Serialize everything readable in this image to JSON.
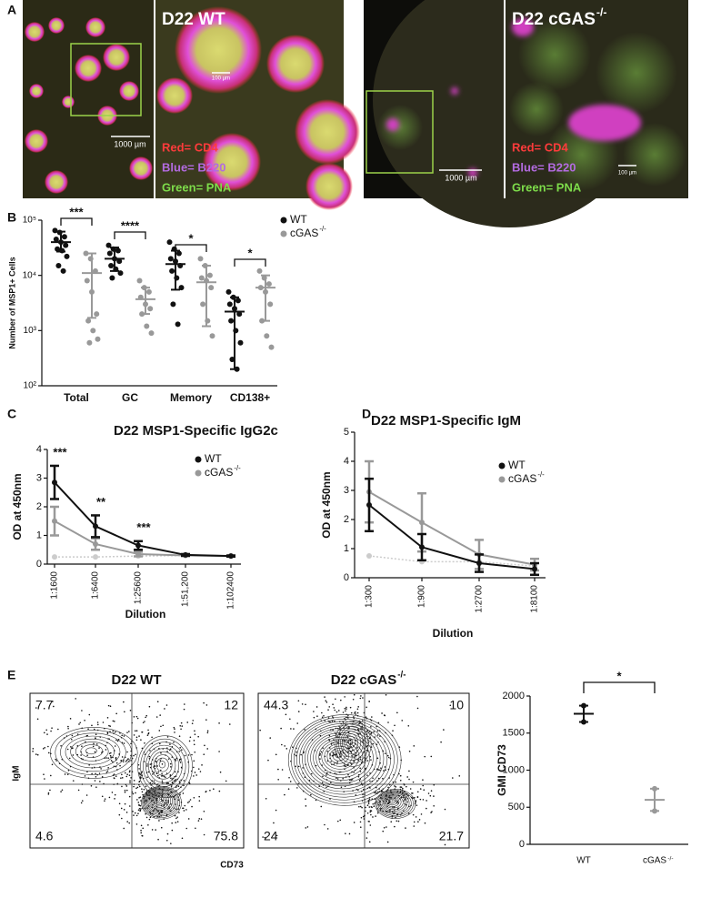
{
  "panel_labels": [
    "A",
    "B",
    "C",
    "D",
    "E"
  ],
  "microscopy": {
    "stain_colors": [
      "#ff3b3b",
      "#b36be0",
      "#7ddc4a"
    ],
    "images": [
      {
        "title": "D22 WT",
        "scale_bars": [
          "1000 µm",
          "100 µm"
        ],
        "stains": [
          "Red= CD4",
          "Blue= B220",
          "Green= PNA"
        ]
      },
      {
        "title": "D22 cGAS",
        "title_sup": "-/-",
        "scale_bars": [
          "1000 µm",
          "100 µm"
        ],
        "stains": [
          "Red= CD4",
          "Blue= B220",
          "Green= PNA"
        ]
      }
    ]
  },
  "chart_data": [
    {
      "type": "dot",
      "ylabel": "Number of MSP1+ Cells",
      "categories": [
        "Total",
        "GC",
        "Memory",
        "CD138+"
      ],
      "log_scale": true,
      "ylim": [
        100,
        100000
      ],
      "yticks": [
        {
          "value": 100,
          "label": "10²"
        },
        {
          "value": 1000,
          "label": "10³"
        },
        {
          "value": 10000,
          "label": "10⁴"
        },
        {
          "value": 100000,
          "label": "10⁵"
        }
      ],
      "legend": "top-right",
      "annotations": [
        "***",
        "****",
        "*",
        "*"
      ],
      "series": [
        {
          "name": "WT",
          "color": "#111111",
          "points": [
            [
              65000,
              60000,
              50000,
              45000,
              40000,
              35000,
              30000,
              28000,
              22000,
              15000,
              12000
            ],
            [
              35000,
              30000,
              28000,
              25000,
              20000,
              18000,
              15000,
              13000,
              11000,
              9000
            ],
            [
              40000,
              30000,
              25000,
              20000,
              18000,
              15000,
              12000,
              9000,
              6000,
              3000,
              1300
            ],
            [
              5000,
              4000,
              3500,
              3000,
              2500,
              2000,
              1500,
              1000,
              600,
              300,
              200
            ]
          ],
          "means": [
            40000,
            20000,
            16000,
            2200
          ],
          "upper": [
            62000,
            32000,
            28000,
            4000
          ],
          "lower": [
            27000,
            12000,
            5500,
            200
          ]
        },
        {
          "name": "cGAS",
          "name_sup": "-/-",
          "color": "#999999",
          "points": [
            [
              25000,
              20000,
              12000,
              8000,
              5000,
              2000,
              1500,
              1000,
              700,
              600
            ],
            [
              8000,
              6000,
              5000,
              4000,
              3000,
              2500,
              2000,
              1200,
              900
            ],
            [
              20000,
              15000,
              10000,
              9000,
              8000,
              6000,
              3000,
              1500,
              800
            ],
            [
              12000,
              9000,
              7000,
              6000,
              5000,
              3000,
              1500,
              800,
              500
            ]
          ],
          "means": [
            11000,
            3700,
            7500,
            6000
          ],
          "upper": [
            25000,
            6000,
            15000,
            10000
          ],
          "lower": [
            1700,
            2000,
            1200,
            1500
          ]
        }
      ]
    },
    {
      "type": "line",
      "title": "D22 MSP1-Specific IgG2c",
      "xlabel": "Dilution",
      "ylabel": "OD at 450nm",
      "categories": [
        "1:1600",
        "1:6400",
        "1:25600",
        "1:51,200",
        "1:102400"
      ],
      "ylim": [
        0,
        4
      ],
      "yticks": [
        0,
        1,
        2,
        3,
        4
      ],
      "legend": "top-right",
      "annotations": [
        "***",
        "**",
        "***"
      ],
      "series": [
        {
          "name": "WT",
          "color": "#111111",
          "values": [
            2.85,
            1.32,
            0.65,
            0.32,
            0.28
          ],
          "errors": [
            0.58,
            0.38,
            0.15,
            0.03,
            0.02
          ]
        },
        {
          "name": "cGAS",
          "name_sup": "-/-",
          "color": "#999999",
          "values": [
            1.5,
            0.7,
            0.35,
            0.3,
            0.28
          ],
          "errors": [
            0.5,
            0.2,
            0.08,
            0.02,
            0.02
          ]
        },
        {
          "color": "#cccccc",
          "dashed": true,
          "values": [
            0.25,
            0.25,
            0.28,
            0.3,
            0.28
          ]
        }
      ]
    },
    {
      "type": "line",
      "title": "D22 MSP1-Specific IgM",
      "xlabel": "Dilution",
      "ylabel": "OD at 450nm",
      "categories": [
        "1:300",
        "1:900",
        "1:2700",
        "1:8100"
      ],
      "ylim": [
        0,
        5
      ],
      "yticks": [
        0,
        1,
        2,
        3,
        4,
        5
      ],
      "legend": "top-right",
      "series": [
        {
          "name": "WT",
          "color": "#111111",
          "values": [
            2.5,
            1.05,
            0.5,
            0.3
          ],
          "errors": [
            0.9,
            0.45,
            0.3,
            0.2
          ]
        },
        {
          "name": "cGAS",
          "name_sup": "-/-",
          "color": "#999999",
          "values": [
            2.95,
            1.9,
            0.8,
            0.45
          ],
          "errors": [
            1.05,
            1.0,
            0.5,
            0.2
          ]
        },
        {
          "color": "#cccccc",
          "dashed": true,
          "values": [
            0.75,
            0.55,
            0.55,
            0.4
          ]
        }
      ]
    },
    {
      "type": "dot",
      "ylabel": "GMI CD73",
      "categories": [
        "WT",
        "cGAS"
      ],
      "category_sup": [
        null,
        "-/-"
      ],
      "ylim": [
        0,
        2000
      ],
      "yticks": [
        0,
        500,
        1000,
        1500,
        2000
      ],
      "annotations": [
        "*"
      ],
      "series": [
        {
          "colors": [
            "#111111",
            "#999999"
          ],
          "points": [
            [
              1870,
              1650
            ],
            [
              750,
              450
            ]
          ],
          "means": [
            1760,
            600
          ],
          "upper": [
            1870,
            750
          ],
          "lower": [
            1650,
            450
          ]
        }
      ]
    }
  ],
  "flow": {
    "ylabel": "IgM",
    "xlabel": "CD73",
    "plots": [
      {
        "title": "D22 WT",
        "quadrants": [
          7.7,
          12,
          4.6,
          75.8
        ]
      },
      {
        "title": "D22 cGAS",
        "title_sup": "-/-",
        "quadrants": [
          44.3,
          10,
          24,
          21.7
        ]
      }
    ]
  }
}
